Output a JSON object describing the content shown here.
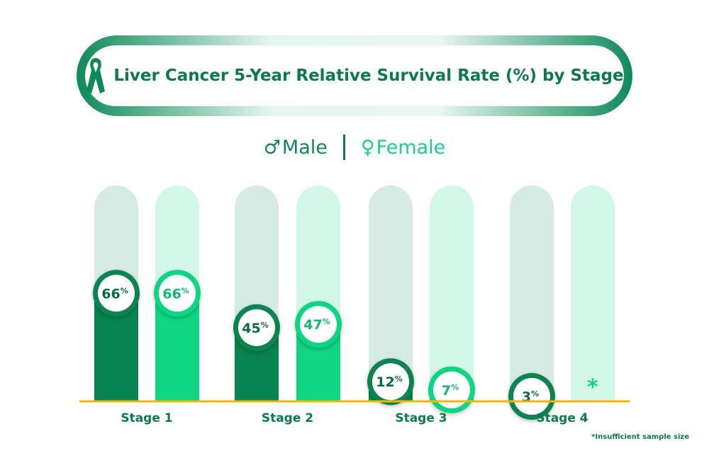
{
  "title": "Liver Cancer 5-Year Relative Survival Rate (%) by Stage",
  "icons": {
    "title": "cancer-ribbon-icon",
    "male": "male-symbol-icon",
    "female": "female-symbol-icon"
  },
  "legend": {
    "male_symbol": "♂",
    "male_label": "Male",
    "female_symbol": "♀",
    "female_label": "Female"
  },
  "colors": {
    "male": "#07844f",
    "female": "#0fd584",
    "male_track": "#d6ebe4",
    "female_track": "#d3f8ea",
    "label": "#0c7a4f",
    "baseline": "#f2b800"
  },
  "footnote": "*Insufficient sample size",
  "chart_data": {
    "type": "bar",
    "title": "Liver Cancer 5-Year Relative Survival Rate (%) by Stage",
    "categories": [
      "Stage 1",
      "Stage 2",
      "Stage 3",
      "Stage 4"
    ],
    "series": [
      {
        "name": "Male",
        "values": [
          66,
          45,
          12,
          3
        ],
        "labels": [
          "66%",
          "45%",
          "12%",
          "3%"
        ]
      },
      {
        "name": "Female",
        "values": [
          66,
          47,
          7,
          null
        ],
        "labels": [
          "66%",
          "47%",
          "7%",
          "*"
        ]
      }
    ],
    "ylim": [
      0,
      100
    ],
    "grid": false,
    "legend_position": "top-center"
  }
}
